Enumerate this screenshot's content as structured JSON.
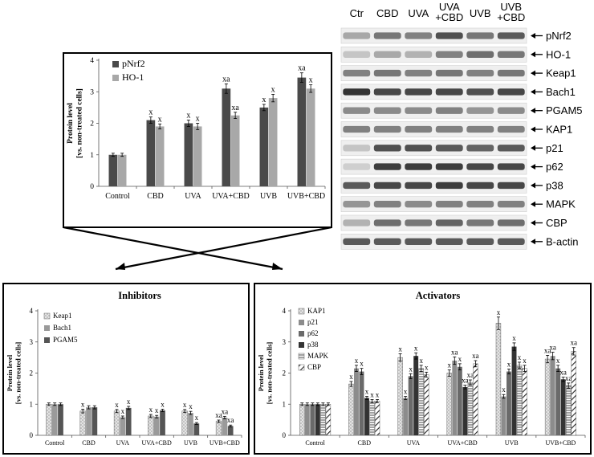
{
  "blot": {
    "lanes": [
      "Ctr",
      "CBD",
      "UVA",
      "UVA\n+CBD",
      "UVB",
      "UVB\n+CBD"
    ],
    "proteins": [
      "pNrf2",
      "HO-1",
      "Keap1",
      "Bach1",
      "PGAM5",
      "KAP1",
      "p21",
      "p62",
      "p38",
      "MAPK",
      "CBP",
      "B-actin"
    ],
    "intensity": [
      [
        0.35,
        0.6,
        0.55,
        0.8,
        0.6,
        0.75
      ],
      [
        0.2,
        0.35,
        0.3,
        0.55,
        0.65,
        0.6
      ],
      [
        0.55,
        0.6,
        0.55,
        0.6,
        0.55,
        0.6
      ],
      [
        0.95,
        0.85,
        0.85,
        0.85,
        0.8,
        0.85
      ],
      [
        0.5,
        0.5,
        0.5,
        0.55,
        0.45,
        0.5
      ],
      [
        0.55,
        0.55,
        0.55,
        0.55,
        0.55,
        0.55
      ],
      [
        0.2,
        0.8,
        0.8,
        0.75,
        0.7,
        0.75
      ],
      [
        0.15,
        0.9,
        0.9,
        0.9,
        0.85,
        0.85
      ],
      [
        0.75,
        0.85,
        0.85,
        0.9,
        0.85,
        0.85
      ],
      [
        0.45,
        0.55,
        0.5,
        0.55,
        0.55,
        0.55
      ],
      [
        0.3,
        0.65,
        0.6,
        0.7,
        0.6,
        0.65
      ],
      [
        0.75,
        0.75,
        0.75,
        0.75,
        0.75,
        0.75
      ]
    ]
  },
  "chart_data": [
    {
      "id": "activation",
      "type": "bar",
      "title": "",
      "ylabel": "Protein level\n[vs. non-treated cells]",
      "xlabel": "",
      "ylim": [
        0,
        4
      ],
      "yticks": [
        0,
        1,
        2,
        3,
        4
      ],
      "categories": [
        "Control",
        "CBD",
        "UVA",
        "UVA+CBD",
        "UVB",
        "UVB+CBD"
      ],
      "legend_position": "top-left",
      "series": [
        {
          "name": "pNrf2",
          "color": "#4a4a4a",
          "pattern": "solid",
          "values": [
            1.0,
            2.1,
            2.0,
            3.1,
            2.5,
            3.45
          ],
          "errors": [
            0.05,
            0.1,
            0.1,
            0.15,
            0.1,
            0.15
          ],
          "labels": [
            "",
            "x",
            "x",
            "xa",
            "x",
            "xa"
          ]
        },
        {
          "name": "HO-1",
          "color": "#a8a8a8",
          "pattern": "solid",
          "values": [
            1.0,
            1.9,
            1.9,
            2.25,
            2.8,
            3.1
          ],
          "errors": [
            0.05,
            0.08,
            0.1,
            0.1,
            0.12,
            0.12
          ],
          "labels": [
            "",
            "x",
            "x",
            "xa",
            "x",
            "x"
          ]
        }
      ]
    },
    {
      "id": "inhibitors",
      "type": "bar",
      "title": "Inhibitors",
      "ylabel": "Protein level\n[vs. non-treated cells]",
      "xlabel": "",
      "ylim": [
        0,
        4
      ],
      "yticks": [
        0,
        1,
        2,
        3,
        4
      ],
      "categories": [
        "Control",
        "CBD",
        "UVA",
        "UVA+CBD",
        "UVB",
        "UVB+CBD"
      ],
      "legend_position": "top-left",
      "series": [
        {
          "name": "Keap1",
          "color": "#d0d0d0",
          "pattern": "dots",
          "values": [
            1.0,
            0.78,
            0.78,
            0.62,
            0.78,
            0.45
          ],
          "errors": [
            0.04,
            0.06,
            0.05,
            0.05,
            0.05,
            0.04
          ],
          "labels": [
            "",
            "x",
            "x",
            "x",
            "x",
            "xa"
          ]
        },
        {
          "name": "Bach1",
          "color": "#9a9a9a",
          "pattern": "solid",
          "values": [
            1.0,
            0.9,
            0.58,
            0.6,
            0.72,
            0.57
          ],
          "errors": [
            0.04,
            0.05,
            0.04,
            0.04,
            0.05,
            0.04
          ],
          "labels": [
            "",
            "",
            "x",
            "x",
            "x",
            "xa"
          ]
        },
        {
          "name": "PGAM5",
          "color": "#555555",
          "pattern": "solid",
          "values": [
            1.0,
            0.9,
            0.88,
            0.8,
            0.38,
            0.3
          ],
          "errors": [
            0.04,
            0.05,
            0.05,
            0.04,
            0.03,
            0.03
          ],
          "labels": [
            "",
            "",
            "x",
            "x",
            "x",
            "xa"
          ]
        }
      ]
    },
    {
      "id": "activators",
      "type": "bar",
      "title": "Activators",
      "ylabel": "Protein level\n[vs. non-treated cells]",
      "xlabel": "",
      "ylim": [
        0,
        4
      ],
      "yticks": [
        0,
        1,
        2,
        3,
        4
      ],
      "categories": [
        "Control",
        "CBD",
        "UVA",
        "UVA+CBD",
        "UVB",
        "UVB+CBD"
      ],
      "legend_position": "top-left",
      "series": [
        {
          "name": "KAP1",
          "color": "#d4d4d4",
          "pattern": "dots",
          "values": [
            1.0,
            1.65,
            2.5,
            2.0,
            3.6,
            2.45
          ],
          "errors": [
            0.04,
            0.08,
            0.12,
            0.1,
            0.2,
            0.12
          ],
          "labels": [
            "",
            "x",
            "x",
            "x",
            "x",
            "xa"
          ]
        },
        {
          "name": "p21",
          "color": "#8c8c8c",
          "pattern": "solid",
          "values": [
            1.0,
            2.15,
            1.2,
            2.4,
            1.25,
            2.55
          ],
          "errors": [
            0.04,
            0.1,
            0.05,
            0.12,
            0.06,
            0.12
          ],
          "labels": [
            "",
            "x",
            "x",
            "xa",
            "x",
            "xa"
          ]
        },
        {
          "name": "p62",
          "color": "#6a6a6a",
          "pattern": "solid",
          "values": [
            1.0,
            2.05,
            1.9,
            2.2,
            2.05,
            2.15
          ],
          "errors": [
            0.04,
            0.1,
            0.08,
            0.1,
            0.08,
            0.1
          ],
          "labels": [
            "",
            "x",
            "x",
            "x",
            "x",
            "x"
          ]
        },
        {
          "name": "p38",
          "color": "#333333",
          "pattern": "solid",
          "values": [
            1.0,
            1.2,
            2.55,
            1.55,
            2.85,
            1.8
          ],
          "errors": [
            0.04,
            0.05,
            0.1,
            0.06,
            0.12,
            0.07
          ],
          "labels": [
            "",
            "x",
            "x",
            "xa",
            "x",
            "xa"
          ]
        },
        {
          "name": "MAPK",
          "color": "#ffffff",
          "pattern": "hlines",
          "values": [
            1.0,
            1.1,
            2.15,
            1.7,
            2.25,
            1.6
          ],
          "errors": [
            0.04,
            0.05,
            0.1,
            0.08,
            0.1,
            0.08
          ],
          "labels": [
            "",
            "x",
            "x",
            "xa",
            "x",
            "xa"
          ]
        },
        {
          "name": "CBP",
          "color": "#ffffff",
          "pattern": "diag",
          "values": [
            1.0,
            1.1,
            1.95,
            2.3,
            2.15,
            2.7
          ],
          "errors": [
            0.04,
            0.05,
            0.08,
            0.1,
            0.1,
            0.12
          ],
          "labels": [
            "",
            "x",
            "x",
            "xa",
            "x",
            "xa"
          ]
        }
      ]
    }
  ]
}
